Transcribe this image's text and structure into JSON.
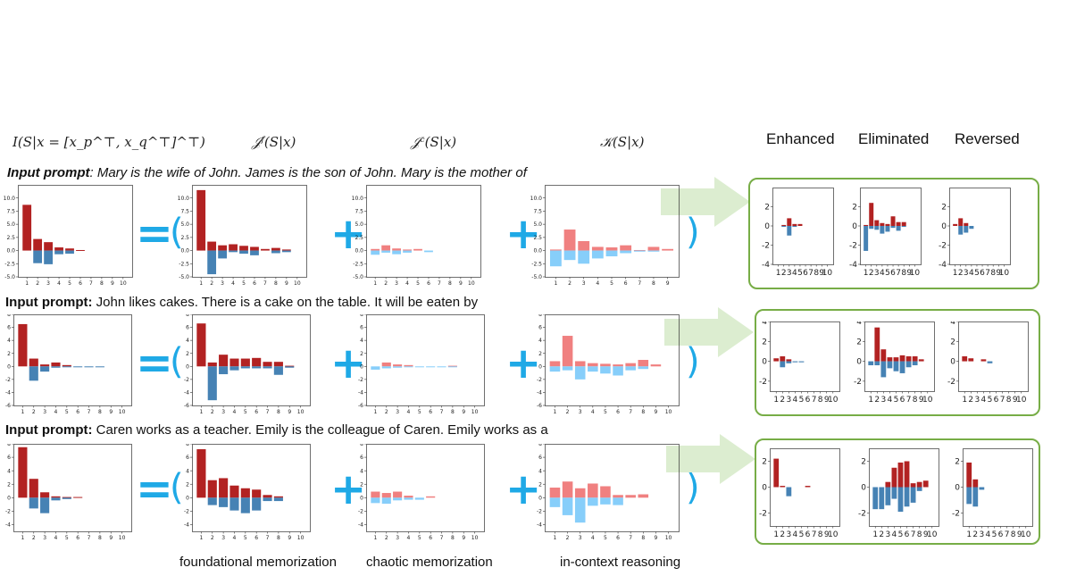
{
  "headers": {
    "col1": "I(S|x = [x_p^⊤, x_q^⊤]^⊤)",
    "col2": "𝒥ᶠ(S|x)",
    "col3": "𝒥ᶜ(S|x)",
    "col4": "𝒦(S|x)",
    "enhanced": "Enhanced",
    "eliminated": "Eliminated",
    "reversed": "Reversed"
  },
  "prompts": [
    {
      "label": "Input prompt",
      "text": ": Mary is the wife of John. James is the son of John. Mary is the mother of"
    },
    {
      "label": "Input prompt:",
      "text": " John likes cakes. There is a cake on the table. It will be eaten by"
    },
    {
      "label": "Input prompt:",
      "text": " Caren works as a teacher. Emily is the colleague of Caren. Emily works as a"
    }
  ],
  "operators": {
    "equals": "=",
    "open_paren": "(",
    "plus": "+",
    "close_paren": ")"
  },
  "footer": {
    "foundational": "foundational memorization",
    "chaotic": "chaotic memorization",
    "incontext": "in-context reasoning"
  },
  "colors": {
    "dark_red": "#b22222",
    "dark_blue": "#4682b4",
    "light_red": "#f08080",
    "light_blue": "#87cefa",
    "accent": "#1fa9e6",
    "green_border": "#77ad46",
    "arrow": "#dcedd0"
  },
  "chart_data": [
    {
      "type": "bar",
      "row": 1,
      "panel": "I",
      "ylim": [
        -5,
        12.5
      ],
      "yticks": [
        "10.0",
        "7.5",
        "5.0",
        "2.5",
        "0.0",
        "-2.5",
        "-5.0"
      ],
      "xticks": [
        "1",
        "2",
        "3",
        "4",
        "5",
        "6",
        "7",
        "8",
        "9",
        "10"
      ],
      "palette": "dark",
      "pos": [
        8.7,
        2.2,
        1.6,
        0.6,
        0.4,
        0.1,
        0,
        0,
        0,
        0
      ],
      "neg": [
        0,
        -2.4,
        -2.6,
        -0.7,
        -0.6,
        0,
        0,
        0,
        0,
        0
      ]
    },
    {
      "type": "bar",
      "row": 1,
      "panel": "Jf",
      "ylim": [
        -5,
        12.5
      ],
      "yticks": [
        "10.0",
        "7.5",
        "5.0",
        "2.5",
        "0.0",
        "-2.5",
        "-5.0"
      ],
      "xticks": [
        "1",
        "2",
        "3",
        "4",
        "5",
        "6",
        "7",
        "8",
        "9",
        "10"
      ],
      "palette": "dark",
      "pos": [
        11.5,
        1.7,
        1.0,
        1.2,
        0.9,
        0.7,
        0.3,
        0.5,
        0.2,
        0
      ],
      "neg": [
        0,
        -4.5,
        -1.5,
        -0.3,
        -0.6,
        -0.9,
        0,
        -0.5,
        -0.3,
        0
      ]
    },
    {
      "type": "bar",
      "row": 1,
      "panel": "Jc",
      "ylim": [
        -5,
        12.5
      ],
      "yticks": [
        "10.0",
        "7.5",
        "5.0",
        "2.5",
        "0.0",
        "-2.5",
        "-5.0"
      ],
      "xticks": [
        "1",
        "2",
        "3",
        "4",
        "5",
        "6",
        "7",
        "8",
        "9",
        "10"
      ],
      "palette": "light",
      "pos": [
        0.3,
        1.0,
        0.4,
        0.2,
        0.3,
        0,
        0,
        0,
        0,
        0
      ],
      "neg": [
        -0.8,
        -0.4,
        -0.7,
        -0.4,
        0,
        -0.3,
        0,
        0,
        0,
        0
      ]
    },
    {
      "type": "bar",
      "row": 1,
      "panel": "K",
      "ylim": [
        -5,
        12.5
      ],
      "yticks": [
        "10.0",
        "7.5",
        "5.0",
        "2.5",
        "0.0",
        "-2.5",
        "-5.0"
      ],
      "xticks": [
        "1",
        "2",
        "3",
        "4",
        "5",
        "6",
        "7",
        "8",
        "9"
      ],
      "palette": "light",
      "pos": [
        0.2,
        4.0,
        1.8,
        0.7,
        0.6,
        1.0,
        0.1,
        0.7,
        0.3
      ],
      "neg": [
        -3.0,
        -1.8,
        -2.5,
        -1.5,
        -1.1,
        -0.5,
        -0.2,
        -0.2,
        0
      ]
    },
    {
      "type": "bar",
      "row": 2,
      "panel": "I",
      "ylim": [
        -6,
        8
      ],
      "yticks": [
        "8",
        "6",
        "4",
        "2",
        "0",
        "-2",
        "-4",
        "-6"
      ],
      "xticks": [
        "1",
        "2",
        "3",
        "4",
        "5",
        "6",
        "7",
        "8",
        "9",
        "10"
      ],
      "palette": "dark",
      "pos": [
        6.5,
        1.2,
        0.3,
        0.6,
        0.2,
        0,
        0,
        0,
        0,
        0
      ],
      "neg": [
        0,
        -2.2,
        -0.8,
        -0.2,
        -0.1,
        -0.1,
        -0.1,
        -0.1,
        0,
        0
      ]
    },
    {
      "type": "bar",
      "row": 2,
      "panel": "Jf",
      "ylim": [
        -6,
        8
      ],
      "yticks": [
        "8",
        "6",
        "4",
        "2",
        "0",
        "-2",
        "-4",
        "-6"
      ],
      "xticks": [
        "1",
        "2",
        "3",
        "4",
        "5",
        "6",
        "7",
        "8",
        "9",
        "10"
      ],
      "palette": "dark",
      "pos": [
        6.6,
        0.6,
        1.8,
        1.2,
        1.2,
        1.3,
        0.7,
        0.7,
        0.1,
        0
      ],
      "neg": [
        0,
        -5.2,
        -1.2,
        -0.6,
        -0.3,
        -0.3,
        -0.3,
        -1.3,
        -0.2,
        0
      ]
    },
    {
      "type": "bar",
      "row": 2,
      "panel": "Jc",
      "ylim": [
        -6,
        8
      ],
      "yticks": [
        "8",
        "6",
        "4",
        "2",
        "0",
        "-2",
        "-4",
        "-6"
      ],
      "xticks": [
        "1",
        "2",
        "3",
        "4",
        "5",
        "6",
        "7",
        "8",
        "9",
        "10"
      ],
      "palette": "light",
      "pos": [
        0,
        0.6,
        0.3,
        0.2,
        0,
        0,
        0,
        0.1,
        0,
        0
      ],
      "neg": [
        -0.5,
        -0.3,
        -0.2,
        -0.1,
        -0.1,
        -0.1,
        -0.1,
        -0.1,
        0,
        0
      ]
    },
    {
      "type": "bar",
      "row": 2,
      "panel": "K",
      "ylim": [
        -6,
        8
      ],
      "yticks": [
        "8",
        "6",
        "4",
        "2",
        "0",
        "-2",
        "-4",
        "-6"
      ],
      "xticks": [
        "1",
        "2",
        "3",
        "4",
        "5",
        "6",
        "7",
        "8",
        "9",
        "10"
      ],
      "palette": "light",
      "pos": [
        0.8,
        4.7,
        0.8,
        0.5,
        0.4,
        0.3,
        0.5,
        1.0,
        0.3,
        0
      ],
      "neg": [
        -0.8,
        -0.6,
        -2.0,
        -0.8,
        -1.1,
        -1.4,
        -0.6,
        -0.4,
        0,
        0
      ]
    },
    {
      "type": "bar",
      "row": 3,
      "panel": "I",
      "ylim": [
        -5,
        8
      ],
      "yticks": [
        "8",
        "6",
        "4",
        "2",
        "0",
        "-2",
        "-4"
      ],
      "xticks": [
        "1",
        "2",
        "3",
        "4",
        "5",
        "6",
        "7",
        "8",
        "9",
        "10"
      ],
      "palette": "dark",
      "pos": [
        7.5,
        2.8,
        0.8,
        0.2,
        0.1,
        0.1,
        0,
        0,
        0,
        0
      ],
      "neg": [
        0,
        -1.6,
        -2.3,
        -0.4,
        -0.2,
        0,
        0,
        0,
        0,
        0
      ]
    },
    {
      "type": "bar",
      "row": 3,
      "panel": "Jf",
      "ylim": [
        -5,
        8
      ],
      "yticks": [
        "8",
        "6",
        "4",
        "2",
        "0",
        "-2",
        "-4"
      ],
      "xticks": [
        "1",
        "2",
        "3",
        "4",
        "5",
        "6",
        "7",
        "8",
        "9",
        "10"
      ],
      "palette": "dark",
      "pos": [
        7.2,
        2.6,
        2.9,
        1.8,
        1.4,
        1.2,
        0.4,
        0.2,
        0,
        0
      ],
      "neg": [
        0,
        -1.1,
        -1.4,
        -1.9,
        -2.3,
        -1.9,
        -0.5,
        -0.5,
        0,
        0
      ]
    },
    {
      "type": "bar",
      "row": 3,
      "panel": "Jc",
      "ylim": [
        -5,
        8
      ],
      "yticks": [
        "8",
        "6",
        "4",
        "2",
        "0",
        "-2",
        "-4"
      ],
      "xticks": [
        "1",
        "2",
        "3",
        "4",
        "5",
        "6",
        "7",
        "8",
        "9",
        "10"
      ],
      "palette": "light",
      "pos": [
        0.9,
        0.7,
        0.9,
        0.3,
        0,
        0.2,
        0,
        0,
        0,
        0
      ],
      "neg": [
        -0.8,
        -0.9,
        -0.4,
        -0.3,
        -0.3,
        0,
        0,
        0,
        0,
        0
      ]
    },
    {
      "type": "bar",
      "row": 3,
      "panel": "K",
      "ylim": [
        -5,
        8
      ],
      "yticks": [
        "8",
        "6",
        "4",
        "2",
        "0",
        "-2",
        "-4"
      ],
      "xticks": [
        "1",
        "2",
        "3",
        "4",
        "5",
        "6",
        "7",
        "8",
        "9",
        "10"
      ],
      "palette": "light",
      "pos": [
        1.5,
        2.4,
        1.4,
        2.1,
        1.7,
        0.4,
        0.4,
        0.5,
        0,
        0
      ],
      "neg": [
        -1.4,
        -2.6,
        -3.7,
        -1.2,
        -1.0,
        -1.1,
        0,
        0,
        0,
        0
      ]
    },
    {
      "type": "bar",
      "row": 1,
      "panel": "Enhanced",
      "ylim": [
        -4,
        4
      ],
      "yticks": [
        "2",
        "0",
        "-2",
        "-4"
      ],
      "xticks": [
        "1",
        "2",
        "3",
        "4",
        "5",
        "6",
        "7",
        "8",
        "9",
        "10"
      ],
      "palette": "dark",
      "pos": [
        0,
        0.1,
        0.8,
        0.2,
        0.2,
        0,
        0,
        0,
        0,
        0
      ],
      "neg": [
        0,
        -0.1,
        -1.0,
        -0.1,
        0,
        0,
        0,
        0,
        0,
        0
      ]
    },
    {
      "type": "bar",
      "row": 1,
      "panel": "Eliminated",
      "ylim": [
        -4,
        4
      ],
      "yticks": [
        "2",
        "0",
        "-2",
        "-4"
      ],
      "xticks": [
        "1",
        "2",
        "3",
        "4",
        "5",
        "6",
        "7",
        "8",
        "9",
        "10"
      ],
      "palette": "dark",
      "pos": [
        0.1,
        2.4,
        0.6,
        0.3,
        0.2,
        1.0,
        0.4,
        0.4,
        0,
        0
      ],
      "neg": [
        -2.6,
        -0.3,
        -0.4,
        -0.8,
        -0.6,
        -0.2,
        -0.5,
        -0.1,
        0,
        0
      ]
    },
    {
      "type": "bar",
      "row": 1,
      "panel": "Reversed",
      "ylim": [
        -4,
        4
      ],
      "yticks": [
        "2",
        "0",
        "-2",
        "-4"
      ],
      "xticks": [
        "1",
        "2",
        "3",
        "4",
        "5",
        "6",
        "7",
        "8",
        "9",
        "10"
      ],
      "palette": "dark",
      "pos": [
        0.2,
        0.8,
        0.3,
        0,
        0,
        0,
        0,
        0,
        0,
        0
      ],
      "neg": [
        0,
        -0.9,
        -0.7,
        -0.3,
        0,
        0,
        0,
        0,
        0,
        0
      ]
    },
    {
      "type": "bar",
      "row": 2,
      "panel": "Enhanced",
      "ylim": [
        -3,
        4
      ],
      "yticks": [
        "4",
        "2",
        "0",
        "-2"
      ],
      "xticks": [
        "1",
        "2",
        "3",
        "4",
        "5",
        "6",
        "7",
        "8",
        "9",
        "10"
      ],
      "palette": "dark",
      "pos": [
        0.3,
        0.5,
        0.2,
        0,
        0,
        0,
        0,
        0,
        0,
        0
      ],
      "neg": [
        0,
        -0.6,
        -0.2,
        -0.1,
        -0.1,
        0,
        0,
        0,
        0,
        0
      ]
    },
    {
      "type": "bar",
      "row": 2,
      "panel": "Eliminated",
      "ylim": [
        -3,
        4
      ],
      "yticks": [
        "4",
        "2",
        "0",
        "-2"
      ],
      "xticks": [
        "1",
        "2",
        "3",
        "4",
        "5",
        "6",
        "7",
        "8",
        "9",
        "10"
      ],
      "palette": "dark",
      "pos": [
        0,
        3.4,
        1.2,
        0.4,
        0.4,
        0.6,
        0.5,
        0.5,
        0.2,
        0
      ],
      "neg": [
        -0.4,
        -0.4,
        -1.6,
        -0.7,
        -1.0,
        -1.2,
        -0.6,
        -0.4,
        0,
        0
      ]
    },
    {
      "type": "bar",
      "row": 2,
      "panel": "Reversed",
      "ylim": [
        -3,
        4
      ],
      "yticks": [
        "4",
        "2",
        "0",
        "-2"
      ],
      "xticks": [
        "1",
        "2",
        "3",
        "4",
        "5",
        "6",
        "7",
        "8",
        "9",
        "10"
      ],
      "palette": "dark",
      "pos": [
        0.5,
        0.3,
        0,
        0.2,
        0,
        0,
        0,
        0,
        0,
        0
      ],
      "neg": [
        0,
        0,
        0,
        0,
        -0.2,
        0,
        0,
        0,
        0,
        0
      ]
    },
    {
      "type": "bar",
      "row": 3,
      "panel": "Enhanced",
      "ylim": [
        -3,
        3
      ],
      "yticks": [
        "2",
        "0",
        "-2"
      ],
      "xticks": [
        "1",
        "2",
        "3",
        "4",
        "5",
        "6",
        "7",
        "8",
        "9",
        "10"
      ],
      "palette": "dark",
      "pos": [
        2.2,
        0.1,
        0,
        0,
        0,
        0.1,
        0,
        0,
        0,
        0
      ],
      "neg": [
        0,
        0,
        -0.7,
        0,
        0,
        0,
        0,
        0,
        0,
        0
      ]
    },
    {
      "type": "bar",
      "row": 3,
      "panel": "Eliminated",
      "ylim": [
        -3,
        3
      ],
      "yticks": [
        "2",
        "0",
        "-2"
      ],
      "xticks": [
        "1",
        "2",
        "3",
        "4",
        "5",
        "6",
        "7",
        "8",
        "9",
        "10"
      ],
      "palette": "dark",
      "pos": [
        0,
        0,
        0.4,
        1.5,
        1.9,
        2.0,
        0.3,
        0.4,
        0.5,
        0
      ],
      "neg": [
        -1.7,
        -1.7,
        -1.4,
        -0.9,
        -1.9,
        -1.5,
        -1.2,
        -0.3,
        0,
        0
      ]
    },
    {
      "type": "bar",
      "row": 3,
      "panel": "Reversed",
      "ylim": [
        -3,
        3
      ],
      "yticks": [
        "2",
        "0",
        "-2"
      ],
      "xticks": [
        "1",
        "2",
        "3",
        "4",
        "5",
        "6",
        "7",
        "8",
        "9",
        "10"
      ],
      "palette": "dark",
      "pos": [
        1.9,
        0.6,
        0,
        0,
        0,
        0,
        0,
        0,
        0,
        0
      ],
      "neg": [
        -1.3,
        -1.5,
        -0.2,
        0,
        0,
        0,
        0,
        0,
        0,
        0
      ]
    }
  ]
}
